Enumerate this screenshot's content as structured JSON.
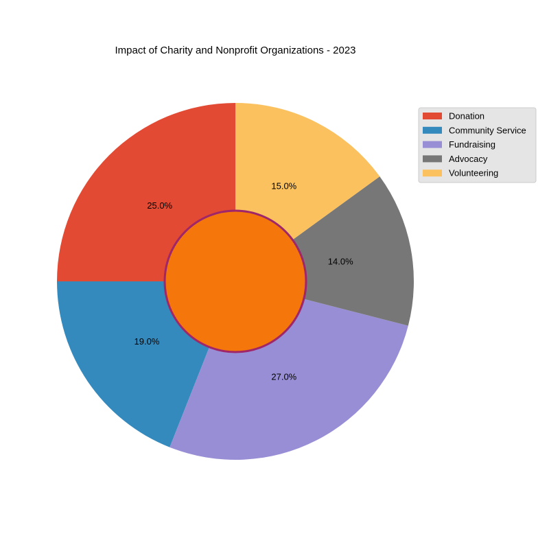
{
  "chart_data": {
    "type": "pie",
    "title": "Impact of Charity and Nonprofit Organizations - 2023",
    "categories": [
      "Donation",
      "Community Service",
      "Fundraising",
      "Advocacy",
      "Volunteering"
    ],
    "values": [
      25.0,
      19.0,
      27.0,
      14.0,
      15.0
    ],
    "value_labels": [
      "25.0%",
      "19.0%",
      "27.0%",
      "14.0%",
      "15.0%"
    ],
    "colors": [
      "#E24A33",
      "#348ABD",
      "#988ED5",
      "#777777",
      "#FBC15E"
    ],
    "center_circle": {
      "fill": "#F5760A",
      "stroke": "#A0266A"
    },
    "start_angle_deg": 90,
    "direction": "counterclockwise",
    "legend": {
      "position": "upper-right",
      "background": "#E5E5E5",
      "border": "#CCCCCC"
    }
  }
}
